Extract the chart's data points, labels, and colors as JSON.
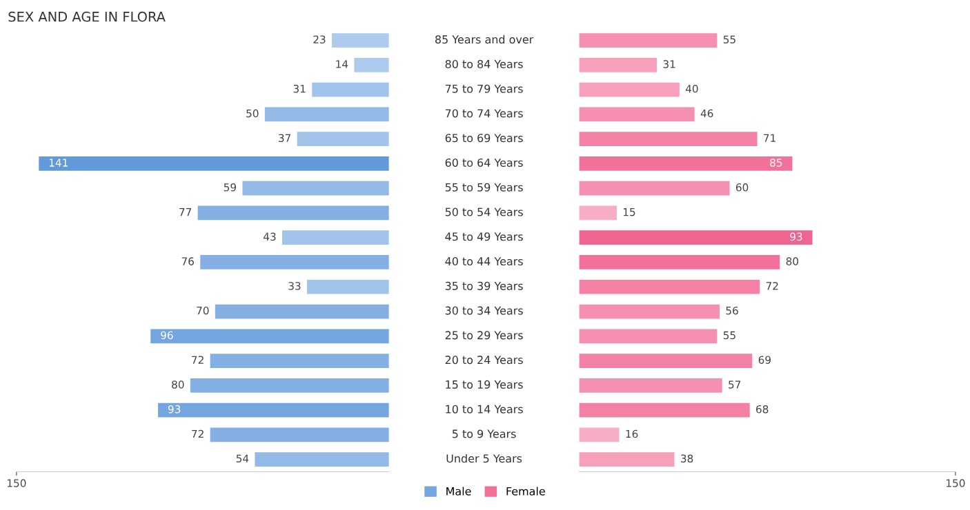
{
  "chart_data": [
    {
      "type": "bar",
      "orientation": "horizontal",
      "title": "SEX AND AGE IN FLORA",
      "categories": [
        "85 Years and over",
        "80 to 84 Years",
        "75 to 79 Years",
        "70 to 74 Years",
        "65 to 69 Years",
        "60 to 64 Years",
        "55 to 59 Years",
        "50 to 54 Years",
        "45 to 49 Years",
        "40 to 44 Years",
        "35 to 39 Years",
        "30 to 34 Years",
        "25 to 29 Years",
        "20 to 24 Years",
        "15 to 19 Years",
        "10 to 14 Years",
        "5 to 9 Years",
        "Under 5 Years"
      ],
      "series": [
        {
          "name": "Male",
          "color": "#75a5e0",
          "values": [
            23,
            14,
            31,
            50,
            37,
            141,
            59,
            77,
            43,
            76,
            33,
            70,
            96,
            72,
            80,
            93,
            72,
            54
          ],
          "colors": [
            "#aecbee",
            "#aecbee",
            "#a2c3ea",
            "#93b9e6",
            "#a2c3ea",
            "#6199db",
            "#93b9e6",
            "#84afe3",
            "#a2c3ea",
            "#84afe3",
            "#a2c3ea",
            "#84afe3",
            "#75a5e0",
            "#84afe3",
            "#84afe3",
            "#75a5e0",
            "#84afe3",
            "#93b9e6"
          ]
        }
      ],
      "xlim": [
        150,
        0
      ],
      "xticks": [
        150
      ],
      "data_labels": true,
      "legend": "bottom",
      "grid": false
    },
    {
      "type": "bar",
      "orientation": "horizontal",
      "categories": [
        null,
        null,
        null,
        null,
        null,
        null,
        null,
        null,
        null,
        null,
        null,
        null,
        null,
        null,
        null,
        null,
        null,
        null
      ],
      "series": [
        {
          "name": "Female",
          "color": "#f27198",
          "values": [
            55,
            31,
            40,
            46,
            71,
            85,
            60,
            15,
            93,
            80,
            72,
            56,
            55,
            69,
            57,
            68,
            16,
            38
          ],
          "colors": [
            "#f590b0",
            "#f6a0ba",
            "#f6a0ba",
            "#f590b0",
            "#f480a4",
            "#f27198",
            "#f590b0",
            "#f7aec4",
            "#f06590",
            "#f27198",
            "#f480a4",
            "#f590b0",
            "#f590b0",
            "#f480a4",
            "#f590b0",
            "#f480a4",
            "#f7aec4",
            "#f6a0ba"
          ]
        }
      ],
      "xlim": [
        0,
        150
      ],
      "xticks": [
        150
      ],
      "data_labels": true,
      "grid": false
    }
  ]
}
